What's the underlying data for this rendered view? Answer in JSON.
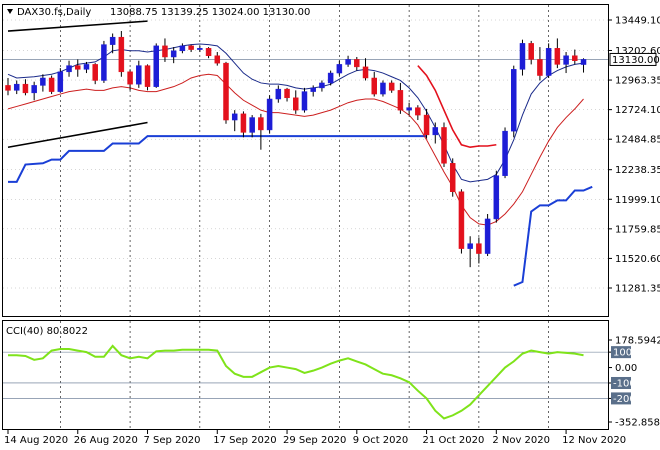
{
  "window": {
    "symbol_label": "DAX30.fs,Daily",
    "ohlc_text": "13088.75 13139.25 13024.00 13130.00",
    "current_price": "13130.00"
  },
  "colors": {
    "bull": "#1d1dd6",
    "bear": "#e3111d",
    "upper_line": "#1a2a8a",
    "lower_line": "#cc1f1f",
    "support": "#1a3fd6",
    "cci": "#7fe31a",
    "grid": "#000000"
  },
  "chart_data": [
    {
      "type": "candlestick",
      "ylim": [
        11281.35,
        13449.1
      ],
      "y_ticks": [
        13449.1,
        13202.6,
        12963.35,
        12724.1,
        12484.85,
        12238.35,
        11999.1,
        11759.85,
        11520.6,
        11281.35
      ],
      "x_tick_labels": [
        "14 Aug 2020",
        "26 Aug 2020",
        "7 Sep 2020",
        "17 Sep 2020",
        "29 Sep 2020",
        "9 Oct 2020",
        "21 Oct 2020",
        "2 Nov 2020",
        "12 Nov 2020"
      ],
      "x_tick_index": [
        0,
        8,
        16,
        24,
        32,
        40,
        48,
        56,
        64
      ],
      "vertical_grid_index": [
        6,
        14,
        22,
        30,
        38,
        46,
        54,
        62
      ],
      "candles": [
        {
          "o": 12920,
          "h": 12980,
          "l": 12840,
          "c": 12880
        },
        {
          "o": 12880,
          "h": 12960,
          "l": 12850,
          "c": 12930
        },
        {
          "o": 12930,
          "h": 12970,
          "l": 12840,
          "c": 12860
        },
        {
          "o": 12860,
          "h": 12950,
          "l": 12800,
          "c": 12920
        },
        {
          "o": 12920,
          "h": 13010,
          "l": 12870,
          "c": 12980
        },
        {
          "o": 12980,
          "h": 13000,
          "l": 12850,
          "c": 12870
        },
        {
          "o": 12870,
          "h": 13060,
          "l": 12860,
          "c": 13030
        },
        {
          "o": 13030,
          "h": 13120,
          "l": 12990,
          "c": 13080
        },
        {
          "o": 13080,
          "h": 13130,
          "l": 12990,
          "c": 13050
        },
        {
          "o": 13050,
          "h": 13110,
          "l": 13020,
          "c": 13090
        },
        {
          "o": 13090,
          "h": 13100,
          "l": 12930,
          "c": 12960
        },
        {
          "o": 12960,
          "h": 13280,
          "l": 12940,
          "c": 13250
        },
        {
          "o": 13250,
          "h": 13340,
          "l": 13180,
          "c": 13310
        },
        {
          "o": 13310,
          "h": 13360,
          "l": 12990,
          "c": 13030
        },
        {
          "o": 13030,
          "h": 13050,
          "l": 12880,
          "c": 12930
        },
        {
          "o": 12930,
          "h": 13120,
          "l": 12900,
          "c": 13080
        },
        {
          "o": 13080,
          "h": 13090,
          "l": 12880,
          "c": 12910
        },
        {
          "o": 12910,
          "h": 13260,
          "l": 12900,
          "c": 13240
        },
        {
          "o": 13240,
          "h": 13300,
          "l": 13110,
          "c": 13150
        },
        {
          "o": 13150,
          "h": 13230,
          "l": 13100,
          "c": 13200
        },
        {
          "o": 13200,
          "h": 13260,
          "l": 13180,
          "c": 13240
        },
        {
          "o": 13240,
          "h": 13250,
          "l": 13190,
          "c": 13210
        },
        {
          "o": 13210,
          "h": 13240,
          "l": 13190,
          "c": 13220
        },
        {
          "o": 13220,
          "h": 13230,
          "l": 13140,
          "c": 13160
        },
        {
          "o": 13160,
          "h": 13190,
          "l": 13080,
          "c": 13100
        },
        {
          "o": 13100,
          "h": 13110,
          "l": 12610,
          "c": 12640
        },
        {
          "o": 12640,
          "h": 12720,
          "l": 12550,
          "c": 12690
        },
        {
          "o": 12690,
          "h": 12710,
          "l": 12500,
          "c": 12540
        },
        {
          "o": 12540,
          "h": 12680,
          "l": 12500,
          "c": 12660
        },
        {
          "o": 12660,
          "h": 12690,
          "l": 12400,
          "c": 12560
        },
        {
          "o": 12560,
          "h": 12840,
          "l": 12530,
          "c": 12810
        },
        {
          "o": 12810,
          "h": 12920,
          "l": 12780,
          "c": 12890
        },
        {
          "o": 12890,
          "h": 12900,
          "l": 12790,
          "c": 12820
        },
        {
          "o": 12820,
          "h": 12880,
          "l": 12690,
          "c": 12720
        },
        {
          "o": 12720,
          "h": 12900,
          "l": 12700,
          "c": 12870
        },
        {
          "o": 12870,
          "h": 12920,
          "l": 12830,
          "c": 12900
        },
        {
          "o": 12900,
          "h": 12960,
          "l": 12870,
          "c": 12940
        },
        {
          "o": 12940,
          "h": 13040,
          "l": 12920,
          "c": 13020
        },
        {
          "o": 13020,
          "h": 13120,
          "l": 13000,
          "c": 13090
        },
        {
          "o": 13090,
          "h": 13160,
          "l": 13070,
          "c": 13130
        },
        {
          "o": 13130,
          "h": 13150,
          "l": 13040,
          "c": 13070
        },
        {
          "o": 13070,
          "h": 13140,
          "l": 12960,
          "c": 12980
        },
        {
          "o": 12980,
          "h": 13030,
          "l": 12830,
          "c": 12850
        },
        {
          "o": 12850,
          "h": 12960,
          "l": 12830,
          "c": 12940
        },
        {
          "o": 12940,
          "h": 12960,
          "l": 12860,
          "c": 12880
        },
        {
          "o": 12880,
          "h": 12940,
          "l": 12690,
          "c": 12720
        },
        {
          "o": 12720,
          "h": 12780,
          "l": 12680,
          "c": 12740
        },
        {
          "o": 12740,
          "h": 12760,
          "l": 12640,
          "c": 12680
        },
        {
          "o": 12680,
          "h": 12730,
          "l": 12490,
          "c": 12520
        },
        {
          "o": 12520,
          "h": 12620,
          "l": 12450,
          "c": 12580
        },
        {
          "o": 12580,
          "h": 12620,
          "l": 12260,
          "c": 12290
        },
        {
          "o": 12290,
          "h": 12330,
          "l": 12020,
          "c": 12060
        },
        {
          "o": 12060,
          "h": 12080,
          "l": 11560,
          "c": 11600
        },
        {
          "o": 11600,
          "h": 11700,
          "l": 11450,
          "c": 11640
        },
        {
          "o": 11640,
          "h": 11690,
          "l": 11480,
          "c": 11560
        },
        {
          "o": 11560,
          "h": 11880,
          "l": 11540,
          "c": 11840
        },
        {
          "o": 11840,
          "h": 12230,
          "l": 11810,
          "c": 12190
        },
        {
          "o": 12190,
          "h": 12580,
          "l": 12170,
          "c": 12550
        },
        {
          "o": 12550,
          "h": 13080,
          "l": 12500,
          "c": 13050
        },
        {
          "o": 13050,
          "h": 13290,
          "l": 13000,
          "c": 13260
        },
        {
          "o": 13260,
          "h": 13280,
          "l": 13090,
          "c": 13130
        },
        {
          "o": 13130,
          "h": 13230,
          "l": 12960,
          "c": 13000
        },
        {
          "o": 13000,
          "h": 13260,
          "l": 12980,
          "c": 13220
        },
        {
          "o": 13220,
          "h": 13300,
          "l": 13060,
          "c": 13090
        },
        {
          "o": 13090,
          "h": 13190,
          "l": 13020,
          "c": 13160
        },
        {
          "o": 13160,
          "h": 13210,
          "l": 13090,
          "c": 13120
        },
        {
          "o": 13088.75,
          "h": 13139.25,
          "l": 13024.0,
          "c": 13130.0
        }
      ],
      "upper_band": [
        13010,
        12980,
        12985,
        12990,
        13000,
        13010,
        13030,
        13060,
        13090,
        13100,
        13110,
        13150,
        13200,
        13210,
        13200,
        13200,
        13190,
        13200,
        13210,
        13225,
        13240,
        13250,
        13255,
        13250,
        13240,
        13180,
        13100,
        13020,
        12970,
        12940,
        12930,
        12930,
        12920,
        12900,
        12890,
        12900,
        12910,
        12930,
        12970,
        13010,
        13040,
        13050,
        13040,
        13020,
        12990,
        12960,
        12900,
        12820,
        12710,
        12580,
        12440,
        12280,
        12160,
        12140,
        12150,
        12160,
        12200,
        12320,
        12480,
        12680,
        12850,
        12940,
        13000,
        13040,
        13070,
        13090,
        13100
      ],
      "lower_band": [
        12730,
        12750,
        12770,
        12790,
        12810,
        12830,
        12850,
        12870,
        12880,
        12890,
        12880,
        12880,
        12900,
        12910,
        12900,
        12880,
        12870,
        12870,
        12890,
        12910,
        12940,
        12980,
        13000,
        13010,
        13000,
        12930,
        12860,
        12800,
        12760,
        12720,
        12700,
        12700,
        12690,
        12680,
        12670,
        12680,
        12700,
        12720,
        12750,
        12780,
        12800,
        12810,
        12810,
        12790,
        12760,
        12730,
        12680,
        12600,
        12480,
        12350,
        12220,
        12100,
        11950,
        11850,
        11800,
        11790,
        11820,
        11880,
        11960,
        12060,
        12200,
        12340,
        12470,
        12580,
        12660,
        12730,
        12810
      ],
      "extra_red_line": {
        "start_index": 47,
        "values": [
          13080,
          13000,
          12880,
          12720,
          12560,
          12440,
          12420,
          12430,
          12430,
          12440
        ]
      },
      "channel_lines": [
        {
          "from_index": 0,
          "from_value": 13360,
          "to_index": 16,
          "to_value": 13440
        },
        {
          "from_index": 0,
          "from_value": 12420,
          "to_index": 16,
          "to_value": 12620
        }
      ],
      "support_line": {
        "points": [
          [
            0,
            12140
          ],
          [
            1,
            12140
          ],
          [
            2,
            12280
          ],
          [
            4,
            12290
          ],
          [
            5,
            12320
          ],
          [
            6,
            12320
          ],
          [
            7,
            12390
          ],
          [
            11,
            12390
          ],
          [
            12,
            12450
          ],
          [
            15,
            12450
          ],
          [
            16,
            12510
          ],
          [
            48,
            12510
          ]
        ]
      },
      "support_line_2": {
        "points": [
          [
            58,
            11300
          ],
          [
            59,
            11330
          ],
          [
            60,
            11900
          ],
          [
            61,
            11950
          ],
          [
            62,
            11950
          ],
          [
            63,
            11990
          ],
          [
            64,
            11990
          ],
          [
            65,
            12070
          ],
          [
            66,
            12070
          ],
          [
            67,
            12100
          ]
        ]
      }
    },
    {
      "type": "line",
      "title": "CCI(40) 80.8022",
      "ylim": [
        -352.8584,
        178.5942
      ],
      "y_ticks": [
        178.5942,
        100,
        0,
        -100,
        -200,
        -352.8584
      ],
      "y_tick_labels": [
        "178.5942",
        "100",
        "0.00",
        "-100",
        "-200",
        "-352.8584"
      ],
      "reference_lines": [
        100,
        -100,
        -200
      ],
      "series": [
        {
          "values": [
            80,
            80,
            75,
            50,
            60,
            110,
            120,
            120,
            110,
            100,
            70,
            70,
            140,
            80,
            60,
            70,
            60,
            105,
            110,
            110,
            115,
            115,
            115,
            115,
            110,
            10,
            -40,
            -60,
            -60,
            -30,
            0,
            10,
            0,
            -10,
            -35,
            -20,
            0,
            25,
            45,
            60,
            40,
            20,
            -10,
            -40,
            -50,
            -70,
            -95,
            -150,
            -200,
            -280,
            -330,
            -310,
            -280,
            -240,
            -180,
            -120,
            -60,
            0,
            40,
            90,
            110,
            100,
            90,
            100,
            95,
            90,
            80
          ]
        }
      ]
    }
  ]
}
